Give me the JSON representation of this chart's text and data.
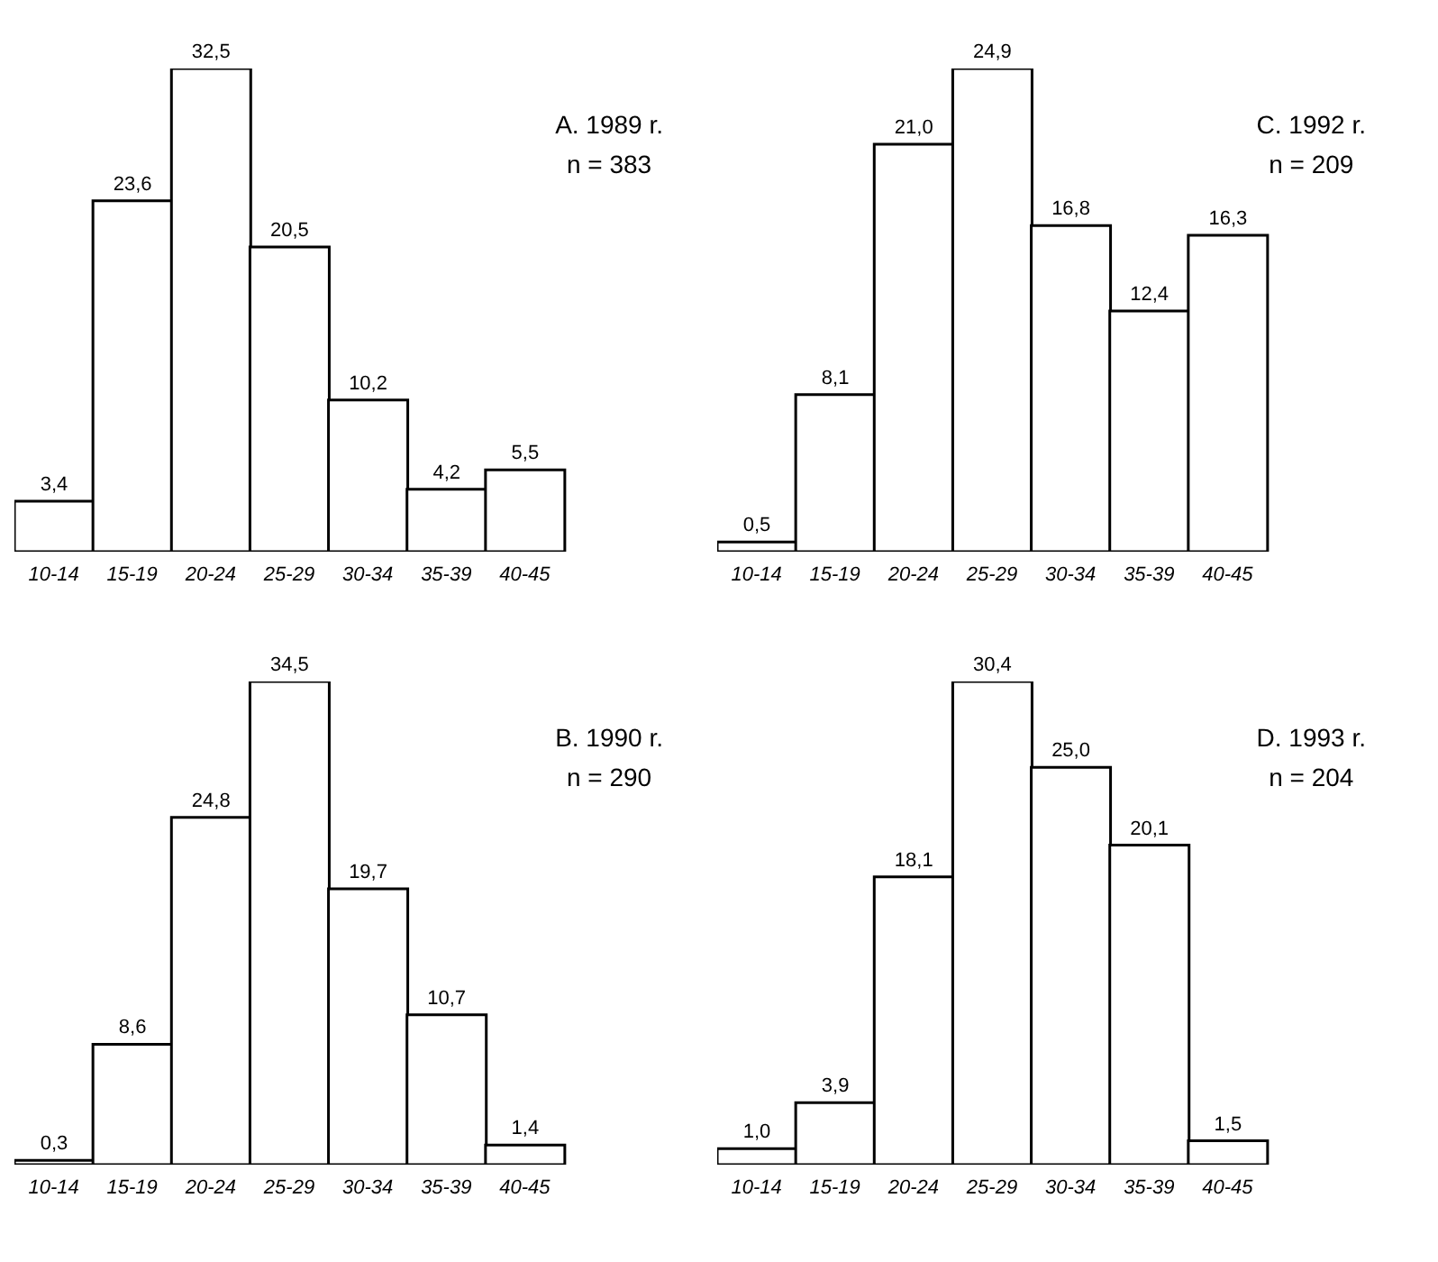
{
  "chart_data": [
    {
      "type": "bar",
      "title": "A. 1989 r.",
      "subtitle": "n = 383",
      "relative": false,
      "categories": [
        "10-14",
        "15-19",
        "20-24",
        "25-29",
        "30-34",
        "35-39",
        "40-45"
      ],
      "values": [
        3.4,
        23.6,
        32.5,
        20.5,
        10.2,
        4.2,
        5.5
      ],
      "value_labels": [
        "3,4",
        "23,6",
        "32,5",
        "20,5",
        "10,2",
        "4,2",
        "5,5"
      ],
      "color": "#ffffff"
    },
    {
      "type": "bar",
      "title": "C. 1992 r.",
      "subtitle": "n = 209",
      "categories": [
        "10-14",
        "15-19",
        "20-24",
        "25-29",
        "30-34",
        "35-39",
        "40-45"
      ],
      "values": [
        0.5,
        8.1,
        21.0,
        24.9,
        16.8,
        12.4,
        16.3
      ],
      "value_labels": [
        "0,5",
        "8,1",
        "21,0",
        "24,9",
        "16,8",
        "12,4",
        "16,3"
      ],
      "color": "#ffffff"
    },
    {
      "type": "bar",
      "title": "B. 1990 r.",
      "subtitle": "n = 290",
      "categories": [
        "10-14",
        "15-19",
        "20-24",
        "25-29",
        "30-34",
        "35-39",
        "40-45"
      ],
      "values": [
        0.3,
        8.6,
        24.8,
        34.5,
        19.7,
        10.7,
        1.4
      ],
      "value_labels": [
        "0,3",
        "8,6",
        "24,8",
        "34,5",
        "19,7",
        "10,7",
        "1,4"
      ],
      "color": "#ffffff"
    },
    {
      "type": "bar",
      "title": "D. 1993 r.",
      "subtitle": "n = 204",
      "categories": [
        "10-14",
        "15-19",
        "20-24",
        "25-29",
        "30-34",
        "35-39",
        "40-45"
      ],
      "values": [
        1.0,
        3.9,
        18.1,
        30.4,
        25.0,
        20.1,
        1.5
      ],
      "value_labels": [
        "1,0",
        "3,9",
        "18,1",
        "30,4",
        "25,0",
        "20,1",
        "1,5"
      ],
      "color": "#ffffff"
    }
  ]
}
